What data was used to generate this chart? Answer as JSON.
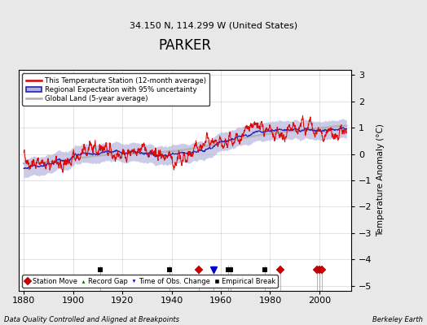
{
  "title": "PARKER",
  "subtitle": "34.150 N, 114.299 W (United States)",
  "ylabel": "Temperature Anomaly (°C)",
  "footer_left": "Data Quality Controlled and Aligned at Breakpoints",
  "footer_right": "Berkeley Earth",
  "xlim": [
    1878,
    2013
  ],
  "ylim": [
    -5.2,
    3.2
  ],
  "yticks": [
    -5,
    -4,
    -3,
    -2,
    -1,
    0,
    1,
    2,
    3
  ],
  "xticks": [
    1880,
    1900,
    1920,
    1940,
    1960,
    1980,
    2000
  ],
  "bg_color": "#e8e8e8",
  "plot_bg_color": "#ffffff",
  "red_line_color": "#dd0000",
  "blue_line_color": "#2222bb",
  "blue_fill_color": "#b0b0dd",
  "gray_line_color": "#b0b0b0",
  "station_move_color": "#cc0000",
  "record_gap_color": "#006600",
  "time_obs_color": "#0000cc",
  "empirical_break_color": "#000000",
  "station_moves": [
    1951,
    1984,
    1999,
    2000,
    2001
  ],
  "time_obs_changes": [
    1957
  ],
  "empirical_breaks": [
    1911,
    1939,
    1963,
    1964,
    1978
  ],
  "record_gaps": [],
  "marker_y": -4.4,
  "seed": 137
}
